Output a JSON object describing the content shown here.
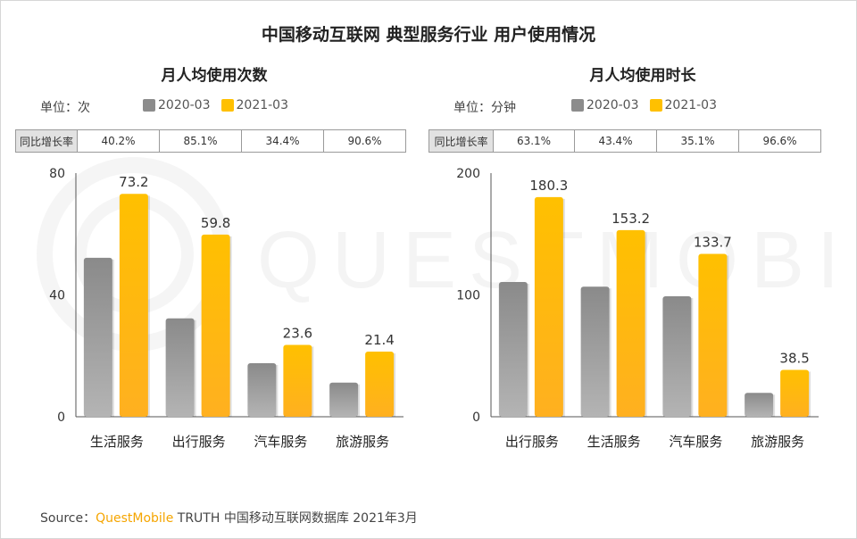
{
  "title": "中国移动互联网 典型服务行业 用户使用情况",
  "legend": {
    "s1": "2020-03",
    "s2": "2021-03",
    "s1_color": "#8c8c8c",
    "s2_color": "#ffc000"
  },
  "watermark": "QUESTMOBILE",
  "source": {
    "prefix": "Source：",
    "brand": "QuestMobile",
    "rest": "TRUTH 中国移动互联网数据库 2021年3月"
  },
  "chart_data": [
    {
      "type": "bar",
      "title": "月人均使用次数",
      "unit_label": "单位：次",
      "categories": [
        "生活服务",
        "出行服务",
        "汽车服务",
        "旅游服务"
      ],
      "series": [
        {
          "name": "2020-03",
          "values": [
            52.2,
            32.3,
            17.6,
            11.2
          ]
        },
        {
          "name": "2021-03",
          "values": [
            73.2,
            59.8,
            23.6,
            21.4
          ]
        }
      ],
      "data_labels": [
        "73.2",
        "59.8",
        "23.6",
        "21.4"
      ],
      "yticks": [
        0,
        40,
        80
      ],
      "ylim": [
        0,
        80
      ],
      "yoy_label": "同比增长率",
      "yoy": [
        "40.2%",
        "85.1%",
        "34.4%",
        "90.6%"
      ]
    },
    {
      "type": "bar",
      "title": "月人均使用时长",
      "unit_label": "单位：分钟",
      "categories": [
        "出行服务",
        "生活服务",
        "汽车服务",
        "旅游服务"
      ],
      "series": [
        {
          "name": "2020-03",
          "values": [
            110.6,
            106.8,
            98.9,
            19.6
          ]
        },
        {
          "name": "2021-03",
          "values": [
            180.3,
            153.2,
            133.7,
            38.5
          ]
        }
      ],
      "data_labels": [
        "180.3",
        "153.2",
        "133.7",
        "38.5"
      ],
      "yticks": [
        0,
        100,
        200
      ],
      "ylim": [
        0,
        200
      ],
      "yoy_label": "同比增长率",
      "yoy": [
        "63.1%",
        "43.4%",
        "35.1%",
        "96.6%"
      ]
    }
  ]
}
